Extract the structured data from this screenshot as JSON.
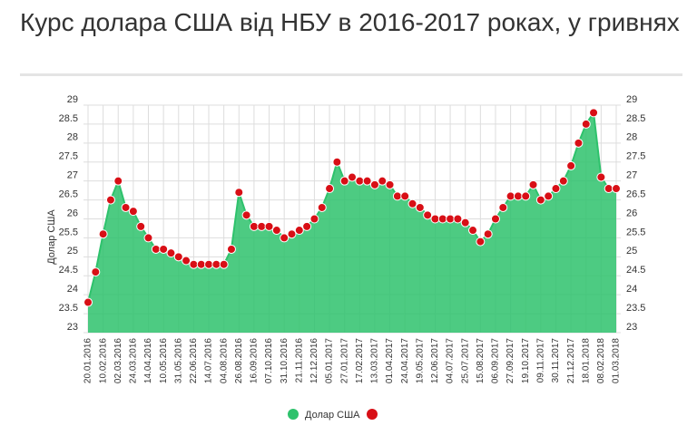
{
  "chart_data": {
    "type": "area",
    "title": "Курс долара США від НБУ в 2016-2017 роках, у гривнях",
    "y_label": "Долар США",
    "categories": [
      "20.01.2016",
      null,
      "10.02.2016",
      null,
      "02.03.2016",
      null,
      "24.03.2016",
      null,
      "14.04.2016",
      null,
      "10.05.2016",
      null,
      "31.05.2016",
      null,
      "22.06.2016",
      null,
      "14.07.2016",
      null,
      "04.08.2016",
      null,
      "26.08.2016",
      null,
      "16.09.2016",
      null,
      "07.10.2016",
      null,
      "31.10.2016",
      null,
      "21.11.2016",
      null,
      "12.12.2016",
      null,
      "05.01.2017",
      null,
      "27.01.2017",
      null,
      "17.02.2017",
      null,
      "13.03.2017",
      null,
      "01.04.2017",
      null,
      "24.04.2017",
      null,
      "19.05.2017",
      null,
      "12.06.2017",
      null,
      "04.07.2017",
      null,
      "25.07.2017",
      null,
      "15.08.2017",
      null,
      "06.09.2017",
      null,
      "27.09.2017",
      null,
      "19.10.2017",
      null,
      "09.11.2017",
      null,
      "30.11.2017",
      null,
      "21.12.2017",
      null,
      "18.01.2018",
      null,
      "08.02.2018",
      null,
      "01.03.2018"
    ],
    "series": [
      {
        "name": "Долар США",
        "color": "#2ec26c",
        "marker_color": "#d80f16",
        "values": [
          23.8,
          24.6,
          25.6,
          26.5,
          27.0,
          26.3,
          26.2,
          25.8,
          25.5,
          25.2,
          25.2,
          25.1,
          25.0,
          24.9,
          24.8,
          24.8,
          24.8,
          24.8,
          24.8,
          25.2,
          26.7,
          26.1,
          25.8,
          25.8,
          25.8,
          25.7,
          25.5,
          25.6,
          25.7,
          25.8,
          26.0,
          26.3,
          26.8,
          27.5,
          27.0,
          27.1,
          27.0,
          27.0,
          26.9,
          27.0,
          26.9,
          26.6,
          26.6,
          26.4,
          26.3,
          26.1,
          26.0,
          26.0,
          26.0,
          26.0,
          25.9,
          25.7,
          25.4,
          25.6,
          26.0,
          26.3,
          26.6,
          26.6,
          26.6,
          26.9,
          26.5,
          26.6,
          26.8,
          27.0,
          27.4,
          28.0,
          28.5,
          28.8,
          27.1,
          26.8,
          26.8
        ]
      }
    ],
    "ylim": [
      23,
      29
    ],
    "yticks": [
      23,
      23.5,
      24,
      24.5,
      25,
      25.5,
      26,
      26.5,
      27,
      27.5,
      28,
      28.5,
      29
    ],
    "y2lim": [
      23,
      29
    ],
    "y2ticks": [
      23,
      23.5,
      24,
      24.5,
      25,
      25.5,
      26,
      26.5,
      27,
      27.5,
      28,
      28.5,
      29
    ],
    "grid": true
  }
}
